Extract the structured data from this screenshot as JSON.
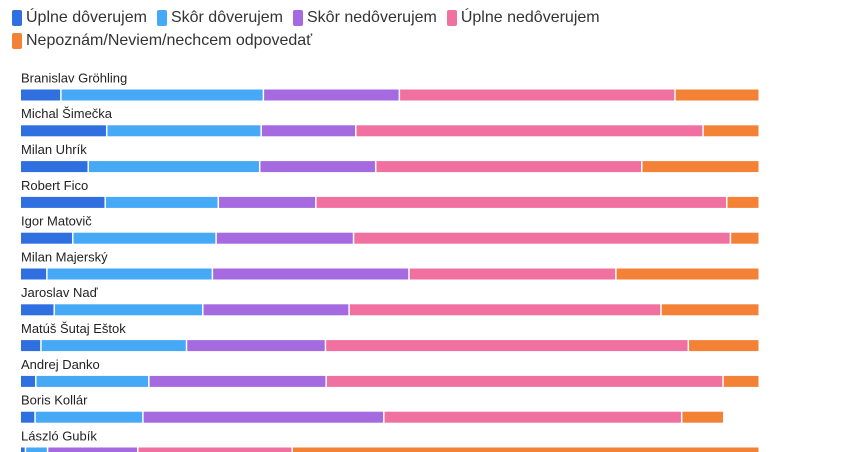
{
  "chart_data": {
    "type": "bar",
    "orientation": "horizontal",
    "stacked": true,
    "normalized_percent": true,
    "legend_position": "top-left",
    "categories": [
      "Branislav Gröhling",
      "Michal Šimečka",
      "Milan Uhrík",
      "Robert Fico",
      "Igor Matovič",
      "Milan Majerský",
      "Jaroslav Naď",
      "Matúš Šutaj Eštok",
      "Andrej Danko",
      "Boris Kollár",
      "László Gubík"
    ],
    "series": [
      {
        "name": "Úplne dôverujem",
        "color": "#2f6fe0",
        "values": [
          5.5,
          11.7,
          9.2,
          11.5,
          7.1,
          3.6,
          4.6,
          2.8,
          2.1,
          2.0,
          0.7
        ]
      },
      {
        "name": "Skôr dôverujem",
        "color": "#46a9f5",
        "values": [
          27.4,
          20.9,
          23.2,
          15.3,
          19.4,
          22.4,
          20.1,
          19.7,
          15.3,
          14.6,
          3.0
        ]
      },
      {
        "name": "Skôr nedôverujem",
        "color": "#a56ae0",
        "values": [
          18.4,
          12.8,
          15.7,
          13.2,
          18.6,
          26.6,
          19.8,
          18.8,
          24.0,
          32.6,
          12.2
        ]
      },
      {
        "name": "Úplne nedôverujem",
        "color": "#f0709f",
        "values": [
          37.3,
          47.0,
          36.0,
          55.6,
          51.0,
          28.0,
          42.2,
          49.1,
          53.7,
          40.3,
          20.9
        ]
      },
      {
        "name": "Nepoznám/Neviem/nechcem odpovedať",
        "color": "#f38236",
        "values": [
          11.4,
          7.6,
          15.9,
          4.4,
          3.9,
          19.4,
          13.3,
          9.6,
          4.9,
          5.7,
          63.2
        ]
      }
    ],
    "xlim": [
      0,
      100
    ],
    "grid": false
  }
}
